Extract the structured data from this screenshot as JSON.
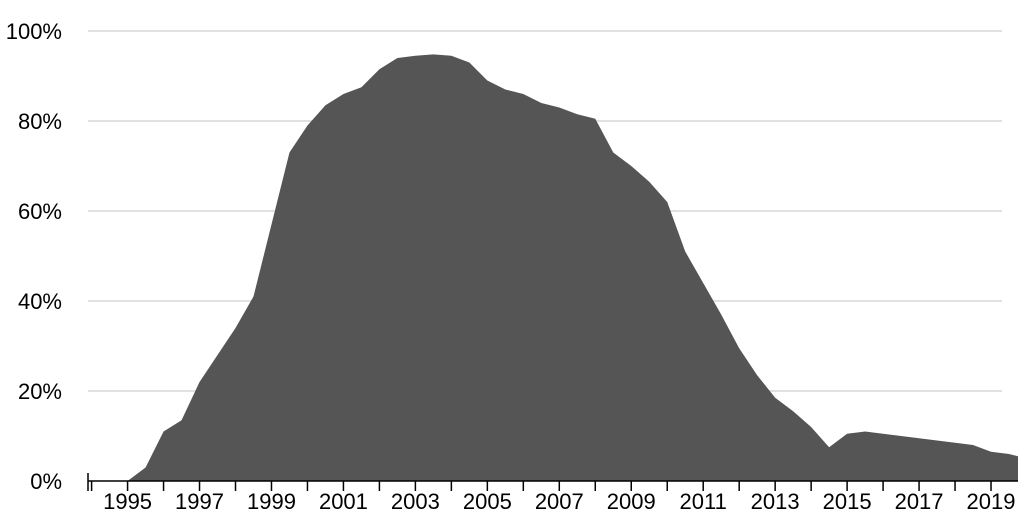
{
  "chart_data": {
    "type": "area",
    "title": "",
    "xlabel": "",
    "ylabel": "",
    "ylim": [
      0,
      100
    ],
    "xlim": [
      1993.9,
      2019.75
    ],
    "grid": true,
    "colors": {
      "area": "#555555",
      "grid": "#cfcfcf",
      "axis": "#000000"
    },
    "y_ticks": [
      0,
      20,
      40,
      60,
      80,
      100
    ],
    "y_tick_labels": [
      "0%",
      "20%",
      "40%",
      "60%",
      "80%",
      "100%"
    ],
    "x_ticks": [
      1995,
      1997,
      1999,
      2001,
      2003,
      2005,
      2007,
      2009,
      2011,
      2013,
      2015,
      2017,
      2019
    ],
    "x_tick_labels": [
      "1995",
      "1997",
      "1999",
      "2001",
      "2003",
      "2005",
      "2007",
      "2009",
      "2011",
      "2013",
      "2015",
      "2017",
      "2019"
    ],
    "series": [
      {
        "x": [
          1993.9,
          1995.0,
          1995.5,
          1996.0,
          1996.5,
          1997.0,
          1997.5,
          1998.0,
          1998.5,
          1999.0,
          1999.5,
          2000.0,
          2000.5,
          2001.0,
          2001.5,
          2002.0,
          2002.5,
          2003.0,
          2003.5,
          2004.0,
          2004.5,
          2005.0,
          2005.5,
          2006.0,
          2006.5,
          2007.0,
          2007.5,
          2008.0,
          2008.5,
          2009.0,
          2009.5,
          2010.0,
          2010.5,
          2011.0,
          2011.5,
          2012.0,
          2012.5,
          2013.0,
          2013.5,
          2014.0,
          2014.5,
          2015.0,
          2015.5,
          2016.0,
          2016.5,
          2017.0,
          2017.5,
          2018.0,
          2018.5,
          2019.0,
          2019.5,
          2019.75
        ],
        "values": [
          0,
          0,
          3,
          11,
          13.5,
          22,
          28,
          34,
          41,
          57,
          73,
          79,
          83.5,
          86,
          87.5,
          91.5,
          94,
          94.5,
          94.8,
          94.5,
          93,
          89,
          87,
          86,
          84,
          83,
          81.5,
          80.5,
          73,
          70,
          66.5,
          62,
          51,
          44,
          37,
          29.5,
          23.5,
          18.5,
          15.5,
          12,
          7.5,
          10.5,
          11,
          10.5,
          10,
          9.5,
          9,
          8.5,
          8,
          6.5,
          6,
          5.5
        ]
      }
    ]
  }
}
